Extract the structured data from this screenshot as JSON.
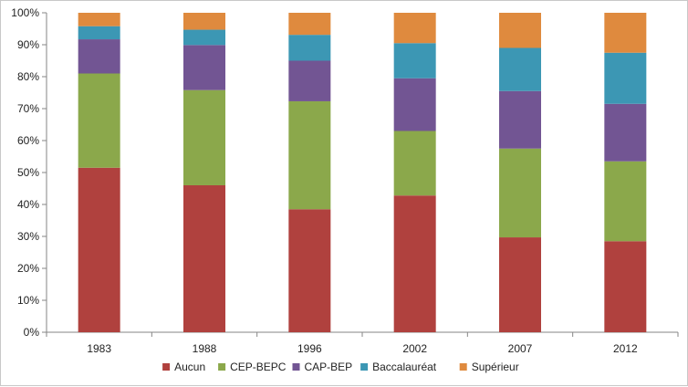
{
  "chart_data": {
    "type": "bar",
    "stacked": true,
    "percent_axis": true,
    "categories": [
      "1983",
      "1988",
      "1996",
      "2002",
      "2007",
      "2012"
    ],
    "series": [
      {
        "name": "Aucun",
        "color": "#B0413E",
        "values": [
          51.5,
          46.0,
          38.5,
          42.8,
          29.7,
          28.5
        ]
      },
      {
        "name": "CEP-BEPC",
        "color": "#8BA84B",
        "values": [
          29.5,
          29.8,
          33.8,
          20.2,
          27.8,
          25.0
        ]
      },
      {
        "name": "CAP-BEP",
        "color": "#725593",
        "values": [
          10.7,
          14.1,
          12.7,
          16.5,
          18.0,
          18.0
        ]
      },
      {
        "name": "Baccalauréat",
        "color": "#3C97B4",
        "values": [
          4.1,
          4.8,
          8.1,
          11.0,
          13.5,
          16.0
        ]
      },
      {
        "name": "Supérieur",
        "color": "#DF8A3E",
        "values": [
          4.2,
          5.3,
          6.9,
          9.5,
          11.0,
          12.5
        ]
      }
    ],
    "y_ticks": [
      "0%",
      "10%",
      "20%",
      "30%",
      "40%",
      "50%",
      "60%",
      "70%",
      "80%",
      "90%",
      "100%"
    ],
    "ylim": [
      0,
      100
    ],
    "grid": false,
    "legend_position": "bottom",
    "title": "",
    "xlabel": "",
    "ylabel": ""
  }
}
